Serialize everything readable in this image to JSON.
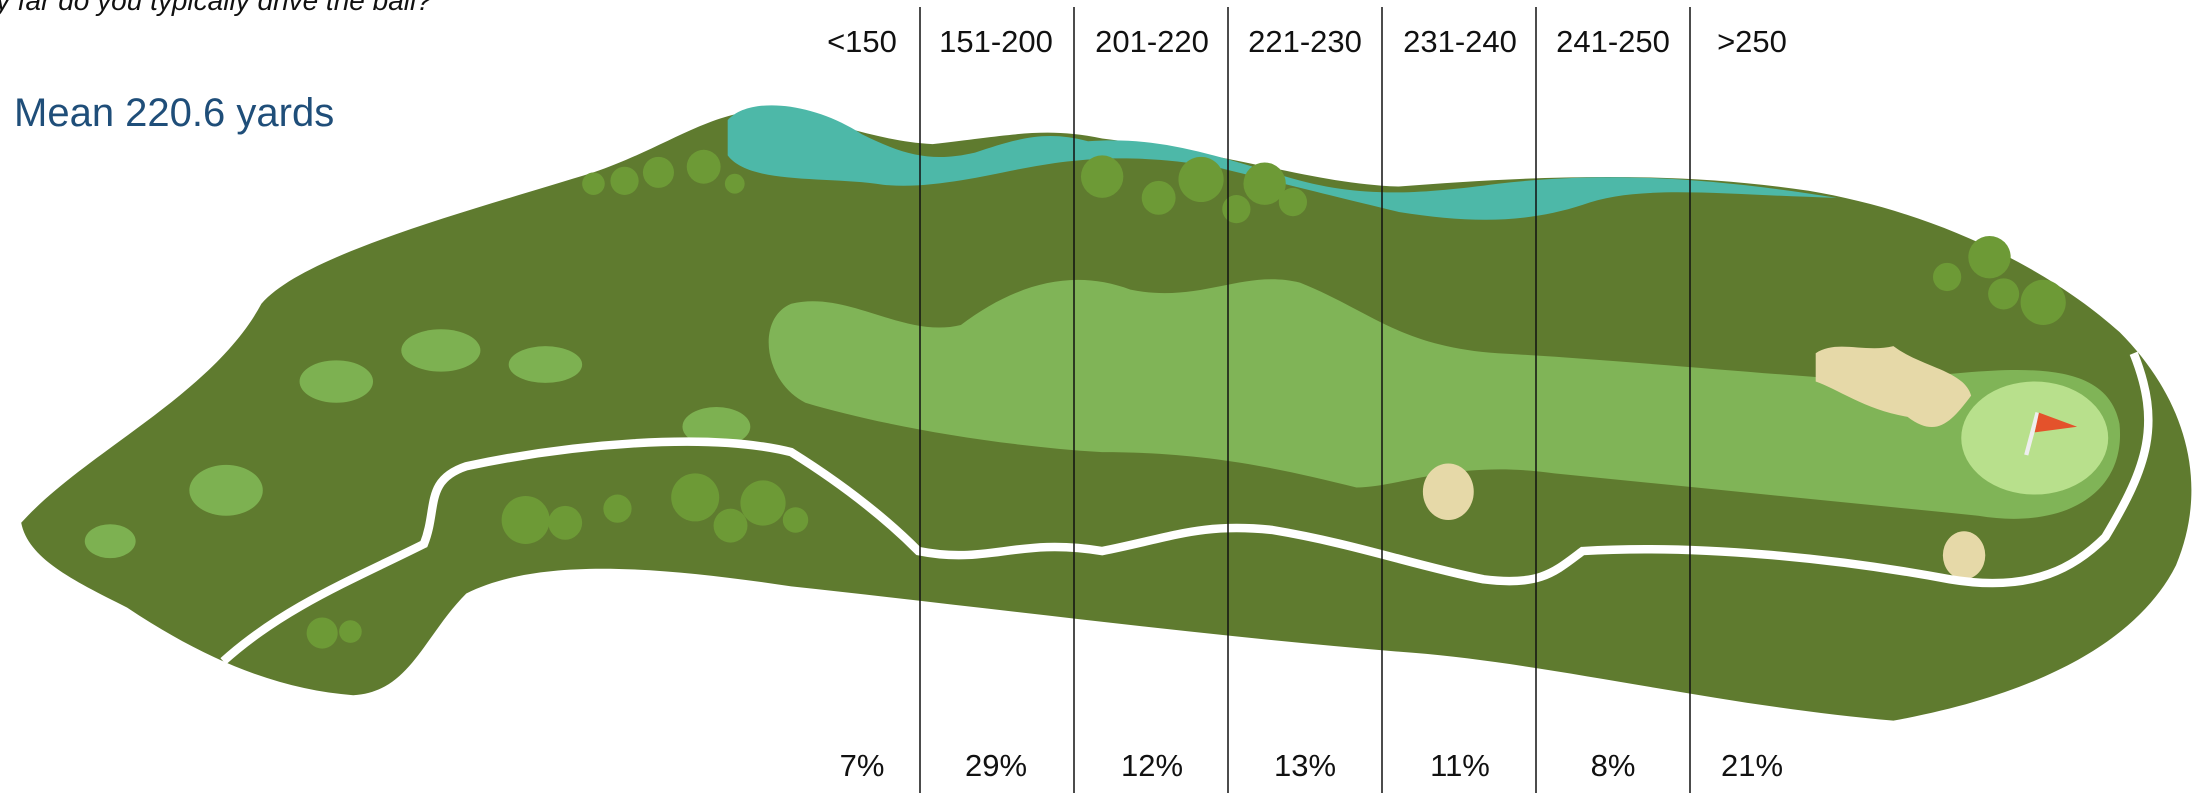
{
  "question": "y far do you typically drive the ball?",
  "mean": "Mean 220.6 yards",
  "columns": [
    {
      "label": "<150",
      "share": "7%"
    },
    {
      "label": "151-200",
      "share": "29%"
    },
    {
      "label": "201-220",
      "share": "12%"
    },
    {
      "label": "221-230",
      "share": "13%"
    },
    {
      "label": "231-240",
      "share": "11%"
    },
    {
      "label": "241-250",
      "share": "8%"
    },
    {
      "label": ">250",
      "share": "21%"
    }
  ]
}
